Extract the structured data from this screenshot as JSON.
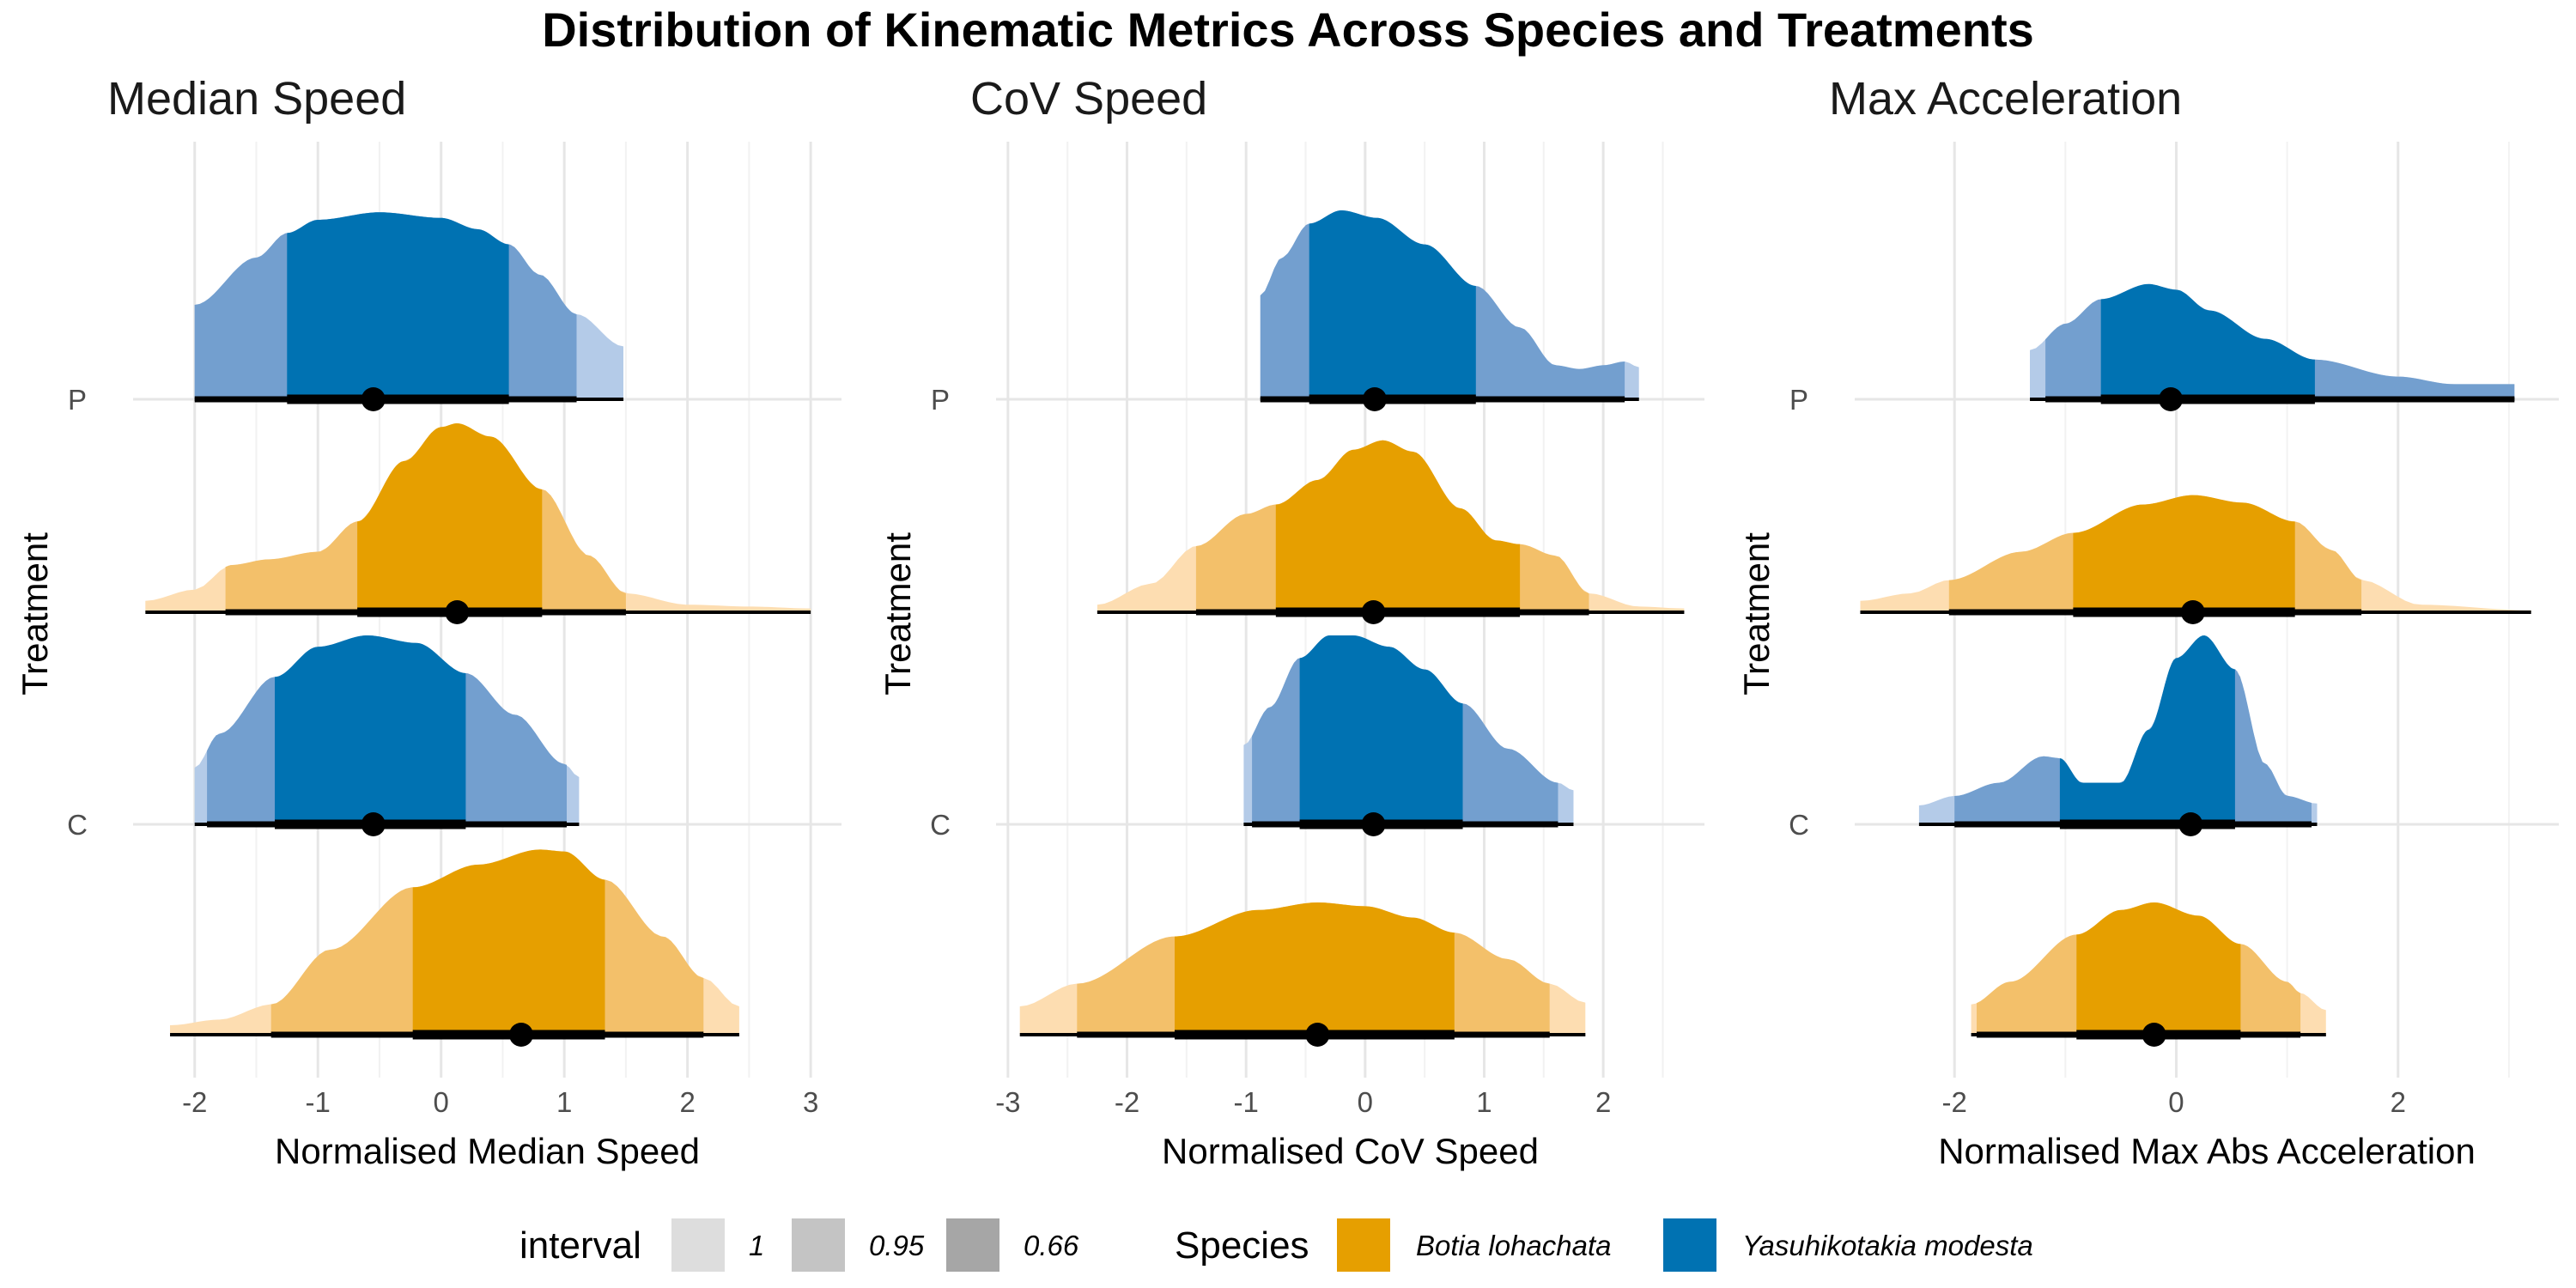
{
  "title": "Distribution of Kinematic Metrics Across Species and Treatments",
  "chart_data": {
    "type": "area",
    "chart_kind": "halfeye",
    "y_axis_label": "Treatment",
    "treatments": [
      "P",
      "C"
    ],
    "interval_levels": [
      "1",
      "0.95",
      "0.66"
    ],
    "interval_shades": [
      "#dddddd",
      "#c4c4c4",
      "#a6a6a6"
    ],
    "species": [
      {
        "name": "Botia lohachata",
        "color": "#E69F00",
        "light": "#F3C06A",
        "lighter": "#FDDDB1"
      },
      {
        "name": "Yasuhikotakia modesta",
        "color": "#0072B2",
        "light": "#739FCF",
        "lighter": "#B4CBE8"
      }
    ],
    "legend": {
      "interval_title": "interval",
      "species_title": "Species"
    },
    "panels": [
      {
        "title": "Median Speed",
        "xlabel": "Normalised Median Speed",
        "xlim": [
          -2.5,
          3.25
        ],
        "xticks": [
          -2,
          -1,
          0,
          1,
          2,
          3
        ],
        "groups": [
          {
            "treatment": "P",
            "species": "Yasuhikotakia modesta",
            "median": -0.55,
            "i66": [
              -1.25,
              0.55
            ],
            "i95": [
              -2.0,
              1.1
            ],
            "i100": [
              -2.0,
              1.48
            ],
            "density": [
              [
                -2.0,
                0.5
              ],
              [
                -1.5,
                0.75
              ],
              [
                -1.25,
                0.88
              ],
              [
                -1.0,
                0.95
              ],
              [
                -0.5,
                0.99
              ],
              [
                0.0,
                0.96
              ],
              [
                0.3,
                0.9
              ],
              [
                0.55,
                0.82
              ],
              [
                0.8,
                0.66
              ],
              [
                1.1,
                0.45
              ],
              [
                1.48,
                0.28
              ]
            ]
          },
          {
            "treatment": "P",
            "species": "Botia lohachata",
            "median": 0.13,
            "i66": [
              -0.68,
              0.82
            ],
            "i95": [
              -1.75,
              1.5
            ],
            "i100": [
              -2.4,
              3.0
            ],
            "density": [
              [
                -2.4,
                0.06
              ],
              [
                -2.0,
                0.12
              ],
              [
                -1.7,
                0.25
              ],
              [
                -1.4,
                0.28
              ],
              [
                -1.0,
                0.32
              ],
              [
                -0.68,
                0.48
              ],
              [
                -0.3,
                0.8
              ],
              [
                0.0,
                0.98
              ],
              [
                0.13,
                1.0
              ],
              [
                0.4,
                0.93
              ],
              [
                0.82,
                0.65
              ],
              [
                1.2,
                0.3
              ],
              [
                1.5,
                0.1
              ],
              [
                2.0,
                0.04
              ],
              [
                2.5,
                0.03
              ],
              [
                3.0,
                0.02
              ]
            ]
          },
          {
            "treatment": "C",
            "species": "Yasuhikotakia modesta",
            "median": -0.55,
            "i66": [
              -1.35,
              0.2
            ],
            "i95": [
              -1.9,
              1.02
            ],
            "i100": [
              -2.0,
              1.12
            ],
            "density": [
              [
                -2.0,
                0.3
              ],
              [
                -1.8,
                0.48
              ],
              [
                -1.35,
                0.78
              ],
              [
                -1.0,
                0.94
              ],
              [
                -0.6,
                1.0
              ],
              [
                -0.2,
                0.96
              ],
              [
                0.2,
                0.8
              ],
              [
                0.6,
                0.58
              ],
              [
                1.0,
                0.32
              ],
              [
                1.12,
                0.25
              ]
            ]
          },
          {
            "treatment": "C",
            "species": "Botia lohachata",
            "median": 0.65,
            "i66": [
              -0.23,
              1.33
            ],
            "i95": [
              -1.38,
              2.13
            ],
            "i100": [
              -2.2,
              2.42
            ],
            "density": [
              [
                -2.2,
                0.05
              ],
              [
                -1.8,
                0.08
              ],
              [
                -1.38,
                0.16
              ],
              [
                -0.9,
                0.45
              ],
              [
                -0.23,
                0.78
              ],
              [
                0.3,
                0.9
              ],
              [
                0.8,
                0.98
              ],
              [
                1.0,
                0.97
              ],
              [
                1.33,
                0.82
              ],
              [
                1.8,
                0.52
              ],
              [
                2.13,
                0.3
              ],
              [
                2.42,
                0.15
              ]
            ]
          }
        ]
      },
      {
        "title": "CoV Speed",
        "xlabel": "Normalised CoV Speed",
        "xlim": [
          -3.1,
          2.85
        ],
        "xticks": [
          -3,
          -2,
          -1,
          0,
          1,
          2
        ],
        "groups": [
          {
            "treatment": "P",
            "species": "Yasuhikotakia modesta",
            "median": 0.08,
            "i66": [
              -0.47,
              0.93
            ],
            "i95": [
              -0.88,
              2.18
            ],
            "i100": [
              -0.88,
              2.3
            ],
            "density": [
              [
                -0.88,
                0.55
              ],
              [
                -0.7,
                0.75
              ],
              [
                -0.47,
                0.93
              ],
              [
                -0.2,
                1.0
              ],
              [
                0.1,
                0.96
              ],
              [
                0.5,
                0.82
              ],
              [
                0.93,
                0.6
              ],
              [
                1.3,
                0.38
              ],
              [
                1.6,
                0.18
              ],
              [
                1.8,
                0.16
              ],
              [
                2.0,
                0.18
              ],
              [
                2.18,
                0.2
              ],
              [
                2.3,
                0.17
              ]
            ]
          },
          {
            "treatment": "P",
            "species": "Botia lohachata",
            "median": 0.07,
            "i66": [
              -0.75,
              1.3
            ],
            "i95": [
              -1.42,
              1.88
            ],
            "i100": [
              -2.25,
              2.68
            ],
            "density": [
              [
                -2.25,
                0.04
              ],
              [
                -1.8,
                0.15
              ],
              [
                -1.42,
                0.35
              ],
              [
                -1.0,
                0.52
              ],
              [
                -0.75,
                0.57
              ],
              [
                -0.4,
                0.7
              ],
              [
                -0.1,
                0.86
              ],
              [
                0.15,
                0.91
              ],
              [
                0.4,
                0.85
              ],
              [
                0.8,
                0.55
              ],
              [
                1.1,
                0.38
              ],
              [
                1.3,
                0.36
              ],
              [
                1.6,
                0.3
              ],
              [
                1.88,
                0.1
              ],
              [
                2.3,
                0.03
              ],
              [
                2.68,
                0.02
              ]
            ]
          },
          {
            "treatment": "C",
            "species": "Yasuhikotakia modesta",
            "median": 0.07,
            "i66": [
              -0.55,
              0.82
            ],
            "i95": [
              -0.95,
              1.62
            ],
            "i100": [
              -1.02,
              1.75
            ],
            "density": [
              [
                -1.02,
                0.42
              ],
              [
                -0.8,
                0.62
              ],
              [
                -0.55,
                0.88
              ],
              [
                -0.3,
                1.0
              ],
              [
                -0.1,
                1.0
              ],
              [
                0.2,
                0.94
              ],
              [
                0.5,
                0.82
              ],
              [
                0.82,
                0.64
              ],
              [
                1.2,
                0.4
              ],
              [
                1.62,
                0.22
              ],
              [
                1.75,
                0.18
              ]
            ]
          },
          {
            "treatment": "C",
            "species": "Botia lohachata",
            "median": -0.4,
            "i66": [
              -1.6,
              0.75
            ],
            "i95": [
              -2.42,
              1.55
            ],
            "i100": [
              -2.9,
              1.85
            ],
            "density": [
              [
                -2.9,
                0.15
              ],
              [
                -2.42,
                0.27
              ],
              [
                -1.6,
                0.52
              ],
              [
                -0.9,
                0.66
              ],
              [
                -0.4,
                0.7
              ],
              [
                0.0,
                0.68
              ],
              [
                0.4,
                0.62
              ],
              [
                0.75,
                0.54
              ],
              [
                1.2,
                0.4
              ],
              [
                1.55,
                0.27
              ],
              [
                1.85,
                0.17
              ]
            ]
          }
        ]
      },
      {
        "title": "Max Acceleration",
        "xlabel": "Normalised Max Abs Acceleration",
        "xlim": [
          -2.9,
          3.45
        ],
        "xticks": [
          -2,
          0,
          2
        ],
        "groups": [
          {
            "treatment": "P",
            "species": "Yasuhikotakia modesta",
            "median": -0.05,
            "i66": [
              -0.68,
              1.25
            ],
            "i95": [
              -1.18,
              3.05
            ],
            "i100": [
              -1.32,
              3.05
            ],
            "density": [
              [
                -1.32,
                0.26
              ],
              [
                -1.0,
                0.4
              ],
              [
                -0.68,
                0.53
              ],
              [
                -0.25,
                0.61
              ],
              [
                0.0,
                0.58
              ],
              [
                0.3,
                0.47
              ],
              [
                0.8,
                0.32
              ],
              [
                1.25,
                0.21
              ],
              [
                2.0,
                0.12
              ],
              [
                2.5,
                0.08
              ],
              [
                3.05,
                0.08
              ]
            ]
          },
          {
            "treatment": "P",
            "species": "Botia lohachata",
            "median": 0.15,
            "i66": [
              -0.93,
              1.07
            ],
            "i95": [
              -2.05,
              1.67
            ],
            "i100": [
              -2.85,
              3.2
            ],
            "density": [
              [
                -2.85,
                0.06
              ],
              [
                -2.4,
                0.1
              ],
              [
                -2.05,
                0.17
              ],
              [
                -1.4,
                0.32
              ],
              [
                -0.93,
                0.42
              ],
              [
                -0.3,
                0.57
              ],
              [
                0.15,
                0.62
              ],
              [
                0.6,
                0.58
              ],
              [
                1.07,
                0.48
              ],
              [
                1.4,
                0.33
              ],
              [
                1.67,
                0.17
              ],
              [
                2.2,
                0.04
              ],
              [
                3.2,
                0.01
              ]
            ]
          },
          {
            "treatment": "C",
            "species": "Yasuhikotakia modesta",
            "median": 0.13,
            "i66": [
              -1.05,
              0.53
            ],
            "i95": [
              -2.0,
              1.22
            ],
            "i100": [
              -2.32,
              1.27
            ],
            "density": [
              [
                -2.32,
                0.1
              ],
              [
                -2.0,
                0.15
              ],
              [
                -1.6,
                0.22
              ],
              [
                -1.2,
                0.36
              ],
              [
                -1.05,
                0.35
              ],
              [
                -0.85,
                0.22
              ],
              [
                -0.5,
                0.22
              ],
              [
                -0.25,
                0.5
              ],
              [
                0.0,
                0.88
              ],
              [
                0.25,
                1.0
              ],
              [
                0.53,
                0.82
              ],
              [
                0.8,
                0.32
              ],
              [
                1.0,
                0.15
              ],
              [
                1.27,
                0.11
              ]
            ]
          },
          {
            "treatment": "C",
            "species": "Botia lohachata",
            "median": -0.2,
            "i66": [
              -0.9,
              0.58
            ],
            "i95": [
              -1.8,
              1.12
            ],
            "i100": [
              -1.85,
              1.35
            ],
            "density": [
              [
                -1.85,
                0.16
              ],
              [
                -1.5,
                0.28
              ],
              [
                -0.9,
                0.53
              ],
              [
                -0.5,
                0.66
              ],
              [
                -0.2,
                0.7
              ],
              [
                0.2,
                0.63
              ],
              [
                0.58,
                0.48
              ],
              [
                1.0,
                0.28
              ],
              [
                1.12,
                0.22
              ],
              [
                1.35,
                0.13
              ]
            ]
          }
        ]
      }
    ]
  }
}
